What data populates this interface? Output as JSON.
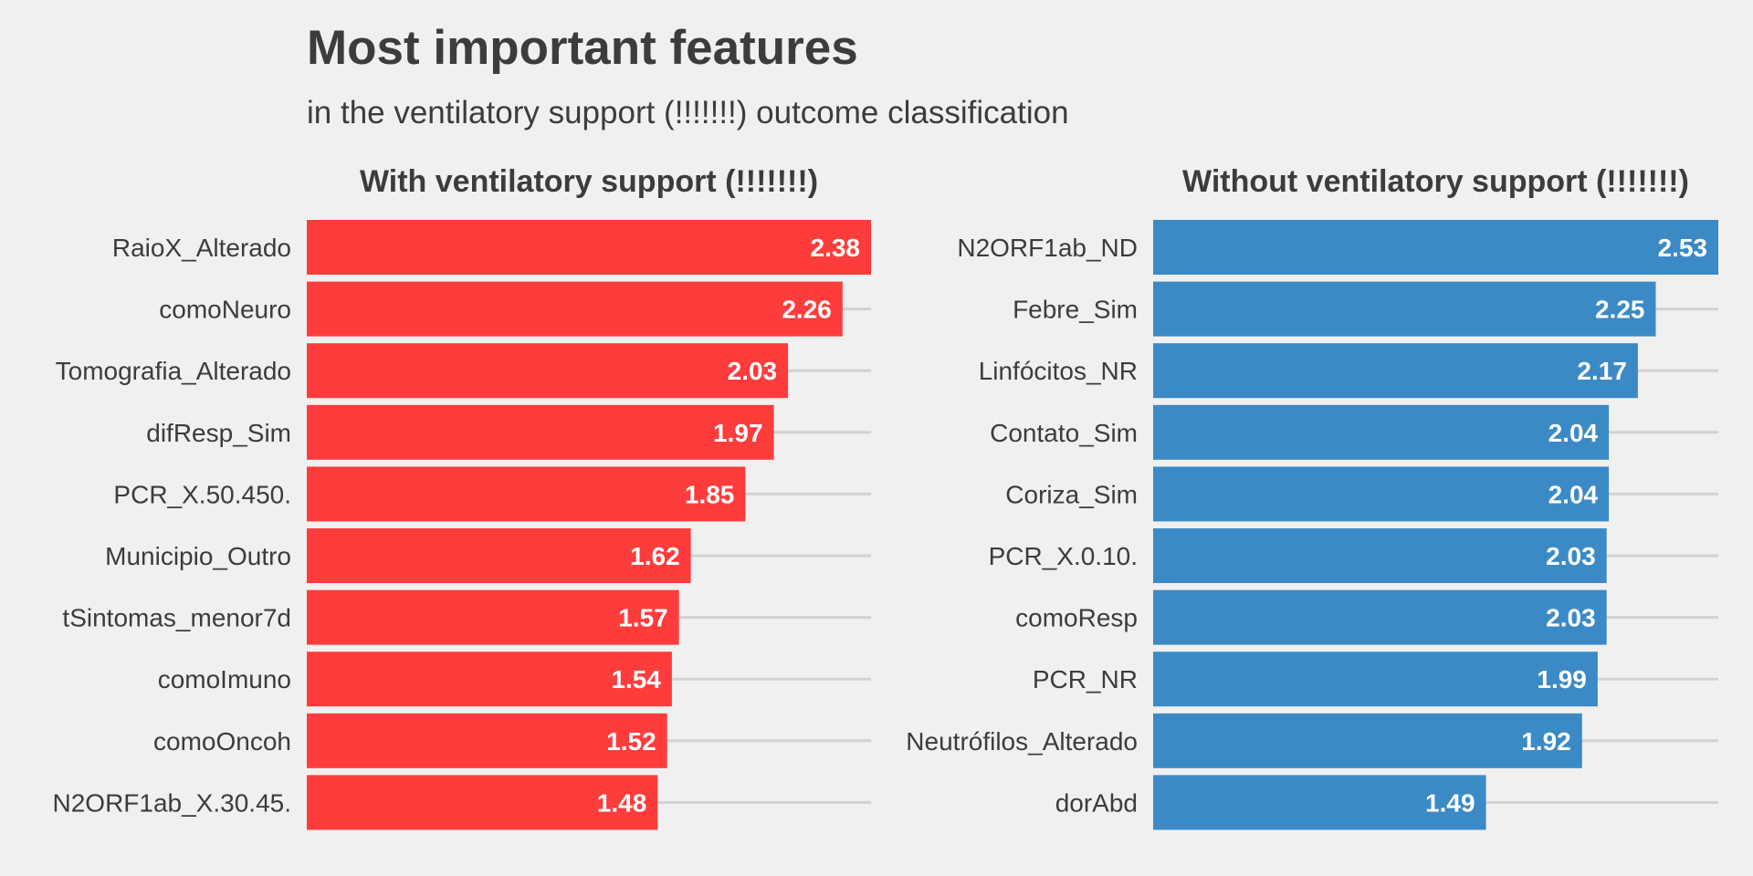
{
  "title": "Most important features",
  "subtitle": "in the ventilatory support (!!!!!!!) outcome classification",
  "chart_data": [
    {
      "type": "bar",
      "orientation": "horizontal",
      "title": "With ventilatory support (!!!!!!!)",
      "color": "#ff3c3c",
      "categories": [
        "RaioX_Alterado",
        "comoNeuro",
        "Tomografia_Alterado",
        "difResp_Sim",
        "PCR_X.50.450.",
        "Municipio_Outro",
        "tSintomas_menor7d",
        "comoImuno",
        "comoOncoh",
        "N2ORF1ab_X.30.45."
      ],
      "values": [
        2.38,
        2.26,
        2.03,
        1.97,
        1.85,
        1.62,
        1.57,
        1.54,
        1.52,
        1.48
      ],
      "value_labels": [
        "2.38",
        "2.26",
        "2.03",
        "1.97",
        "1.85",
        "1.62",
        "1.57",
        "1.54",
        "1.52",
        "1.48"
      ],
      "xlim": [
        0,
        2.38
      ],
      "grid": "horizontal"
    },
    {
      "type": "bar",
      "orientation": "horizontal",
      "title": "Without ventilatory support (!!!!!!!)",
      "color": "#3b8ac6",
      "categories": [
        "N2ORF1ab_ND",
        "Febre_Sim",
        "Linfócitos_NR",
        "Contato_Sim",
        "Coriza_Sim",
        "PCR_X.0.10.",
        "comoResp",
        "PCR_NR",
        "Neutrófilos_Alterado",
        "dorAbd"
      ],
      "values": [
        2.53,
        2.25,
        2.17,
        2.04,
        2.04,
        2.03,
        2.03,
        1.99,
        1.92,
        1.49
      ],
      "value_labels": [
        "2.53",
        "2.25",
        "2.17",
        "2.04",
        "2.04",
        "2.03",
        "2.03",
        "1.99",
        "1.92",
        "1.49"
      ],
      "xlim": [
        0,
        2.53
      ],
      "grid": "horizontal"
    }
  ]
}
